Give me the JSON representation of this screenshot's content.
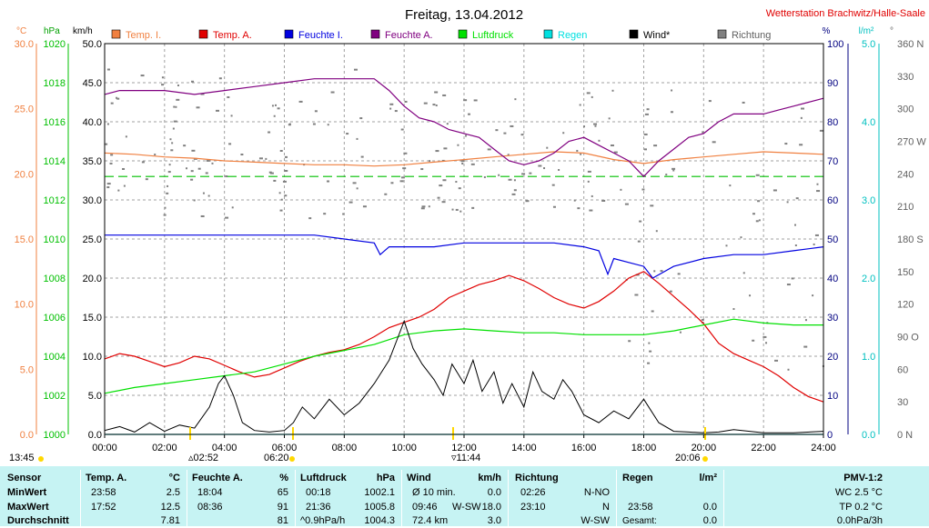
{
  "title": "Freitag, 13.04.2012",
  "station": "Wetterstation Brachwitz/Halle-Saale",
  "units": {
    "temp": "°C",
    "pressure": "hPa",
    "wind": "km/h",
    "humidity": "%",
    "rain": "l/m²",
    "direction": "°"
  },
  "legend": [
    {
      "label": "Temp. I.",
      "color": "#f08040"
    },
    {
      "label": "Temp. A.",
      "color": "#e00000"
    },
    {
      "label": "Feuchte I.",
      "color": "#0000e0"
    },
    {
      "label": "Feuchte A.",
      "color": "#800080"
    },
    {
      "label": "Luftdruck",
      "color": "#00e000"
    },
    {
      "label": "Regen",
      "color": "#00e0e0"
    },
    {
      "label": "Wind*",
      "color": "#000000"
    },
    {
      "label": "Richtung",
      "color": "#808080"
    }
  ],
  "axes": {
    "temp": {
      "color": "#f08040",
      "ticks": [
        "30.0",
        "25.0",
        "20.0",
        "15.0",
        "10.0",
        "5.0",
        "0.0"
      ],
      "range": [
        0,
        30
      ]
    },
    "pressure": {
      "color": "#00a000",
      "ticks": [
        "1020",
        "1018",
        "1016",
        "1014",
        "1012",
        "1010",
        "1008",
        "1006",
        "1004",
        "1002",
        "1000"
      ],
      "range": [
        1000,
        1020
      ]
    },
    "wind": {
      "color": "#000000",
      "ticks": [
        "50.0",
        "45.0",
        "40.0",
        "35.0",
        "30.0",
        "25.0",
        "20.0",
        "15.0",
        "10.0",
        "5.0",
        "0.0"
      ],
      "range": [
        0,
        50
      ]
    },
    "humidity": {
      "color": "#000080",
      "ticks": [
        "100",
        "90",
        "80",
        "70",
        "60",
        "50",
        "40",
        "30",
        "20",
        "10",
        "0"
      ],
      "range": [
        0,
        100
      ]
    },
    "rain": {
      "color": "#00c0c0",
      "ticks": [
        "5.0",
        "4.0",
        "3.0",
        "2.0",
        "1.0",
        "0.0"
      ],
      "range": [
        0,
        5
      ]
    },
    "direction": {
      "color": "#606060",
      "ticks": [
        "360 N",
        "330",
        "300",
        "270 W",
        "240",
        "210",
        "180 S",
        "150",
        "120",
        "90 O",
        "60",
        "30",
        "0 N"
      ],
      "range": [
        0,
        360
      ]
    },
    "time": {
      "ticks": [
        "00:00",
        "02:00",
        "04:00",
        "06:00",
        "08:00",
        "10:00",
        "12:00",
        "14:00",
        "16:00",
        "18:00",
        "20:00",
        "22:00",
        "24:00"
      ],
      "range": [
        0,
        24
      ]
    }
  },
  "sun": {
    "labels": [
      "13:45",
      "▵02:52",
      "06:20",
      "▿11:44",
      "20:06"
    ]
  },
  "chart_data": {
    "type": "line",
    "title": "Freitag, 13.04.2012",
    "xlabel": "",
    "xlim": [
      0,
      24
    ],
    "grid": true,
    "reference_line": {
      "name": "Luftdruck",
      "value": 1013.2
    },
    "series": [
      {
        "name": "Temp. I.",
        "axis": "temp",
        "x": [
          0,
          1,
          2,
          3,
          4,
          5,
          6,
          7,
          8,
          9,
          10,
          11,
          12,
          13,
          14,
          15,
          16,
          17,
          18,
          19,
          20,
          21,
          22,
          23,
          24
        ],
        "values": [
          21.6,
          21.5,
          21.3,
          21.2,
          21.0,
          20.9,
          20.8,
          20.7,
          20.7,
          20.6,
          20.7,
          20.9,
          21.1,
          21.3,
          21.5,
          21.7,
          21.6,
          21.1,
          20.8,
          21.1,
          21.3,
          21.5,
          21.7,
          21.6,
          21.5
        ]
      },
      {
        "name": "Temp. A.",
        "axis": "temp",
        "x": [
          0,
          0.5,
          1,
          1.5,
          2,
          2.5,
          3,
          3.5,
          4,
          4.5,
          5,
          5.5,
          6,
          6.5,
          7,
          7.5,
          8,
          8.5,
          9,
          9.5,
          10,
          10.5,
          11,
          11.5,
          12,
          12.5,
          13,
          13.5,
          14,
          14.5,
          15,
          15.5,
          16,
          16.5,
          17,
          17.5,
          18,
          18.5,
          19,
          19.5,
          20,
          20.5,
          21,
          21.5,
          22,
          22.5,
          23,
          23.5,
          24
        ],
        "values": [
          5.8,
          6.2,
          6.0,
          5.6,
          5.2,
          5.5,
          6.0,
          5.8,
          5.3,
          4.8,
          4.4,
          4.6,
          5.1,
          5.6,
          6.0,
          6.3,
          6.5,
          6.9,
          7.5,
          8.2,
          8.6,
          9.0,
          9.6,
          10.5,
          11.0,
          11.5,
          11.8,
          12.2,
          11.8,
          11.2,
          10.5,
          10.0,
          9.7,
          10.2,
          11.0,
          12.0,
          12.5,
          11.6,
          10.6,
          9.6,
          8.5,
          7.0,
          6.2,
          5.7,
          5.2,
          4.5,
          3.6,
          2.9,
          2.5
        ]
      },
      {
        "name": "Feuchte I.",
        "axis": "humidity",
        "x": [
          0,
          1,
          2,
          3,
          4,
          5,
          6,
          7,
          8,
          9,
          9.2,
          9.5,
          10,
          11,
          12,
          13,
          14,
          15,
          16,
          16.5,
          16.8,
          17,
          17.5,
          18,
          18.3,
          19,
          20,
          21,
          22,
          23,
          24
        ],
        "values": [
          51,
          51,
          51,
          51,
          51,
          51,
          51,
          51,
          50,
          49,
          46,
          48,
          48,
          48,
          49,
          49,
          49,
          49,
          48,
          47,
          41,
          45,
          44,
          43,
          40,
          43,
          45,
          46,
          46,
          47,
          48
        ]
      },
      {
        "name": "Feuchte A.",
        "axis": "humidity",
        "x": [
          0,
          0.5,
          1,
          2,
          3,
          4,
          5,
          6,
          7,
          8,
          9,
          9.5,
          10,
          10.5,
          11,
          11.5,
          12,
          12.5,
          13,
          13.5,
          14,
          14.5,
          15,
          15.5,
          16,
          16.5,
          17,
          17.5,
          18,
          18.5,
          19,
          19.5,
          20,
          20.5,
          21,
          21.5,
          22,
          22.5,
          23,
          23.5,
          24
        ],
        "values": [
          87,
          88,
          88,
          88,
          87,
          88,
          89,
          90,
          91,
          91,
          91,
          88,
          84,
          81,
          80,
          78,
          77,
          76,
          73,
          70,
          69,
          70,
          72,
          75,
          76,
          74,
          72,
          70,
          66,
          70,
          73,
          76,
          77,
          80,
          82,
          82,
          82,
          83,
          84,
          85,
          86
        ]
      },
      {
        "name": "Luftdruck",
        "axis": "pressure",
        "x": [
          0,
          1,
          2,
          3,
          4,
          5,
          6,
          7,
          8,
          9,
          10,
          10.5,
          11,
          12,
          13,
          14,
          15,
          16,
          17,
          18,
          19,
          20,
          21,
          22,
          23,
          24
        ],
        "values": [
          1002.1,
          1002.4,
          1002.6,
          1002.8,
          1003.0,
          1003.2,
          1003.6,
          1004.0,
          1004.3,
          1004.6,
          1005.1,
          1005.2,
          1005.3,
          1005.4,
          1005.3,
          1005.2,
          1005.2,
          1005.1,
          1005.1,
          1005.1,
          1005.3,
          1005.6,
          1005.9,
          1005.7,
          1005.6,
          1005.6
        ]
      },
      {
        "name": "Wind*",
        "axis": "wind",
        "x": [
          0,
          0.5,
          1,
          1.5,
          2,
          2.5,
          3,
          3.5,
          3.8,
          4,
          4.3,
          4.6,
          5,
          5.5,
          6,
          6.3,
          6.6,
          7,
          7.5,
          8,
          8.5,
          9,
          9.5,
          9.8,
          10,
          10.3,
          10.6,
          11,
          11.3,
          11.6,
          12,
          12.3,
          12.6,
          13,
          13.3,
          13.6,
          14,
          14.3,
          14.6,
          15,
          15.3,
          15.6,
          16,
          16.5,
          17,
          17.5,
          18,
          18.5,
          19,
          19.5,
          20,
          20.5,
          21,
          22,
          23,
          24
        ],
        "values": [
          0.5,
          1.0,
          0.3,
          1.5,
          0.4,
          1.2,
          0.8,
          3.5,
          6.5,
          7.5,
          5.0,
          1.5,
          0.5,
          0.3,
          0.5,
          1.5,
          3.5,
          2.0,
          4.5,
          2.5,
          4.0,
          6.5,
          9.5,
          12.5,
          14.5,
          11.0,
          9.0,
          7.0,
          5.0,
          9.0,
          6.5,
          9.5,
          5.5,
          8.0,
          4.0,
          6.5,
          3.5,
          8.0,
          5.5,
          4.5,
          7.0,
          5.5,
          2.5,
          1.5,
          3.0,
          2.0,
          4.5,
          1.5,
          0.4,
          0.3,
          0.2,
          0.3,
          0.6,
          0.2,
          0.2,
          0.4
        ]
      },
      {
        "name": "Regen",
        "axis": "rain",
        "x": [
          0,
          24
        ],
        "values": [
          0,
          0
        ]
      }
    ]
  },
  "stats": {
    "labels": {
      "sensor": "Sensor",
      "min": "MinWert",
      "max": "MaxWert",
      "avg": "Durchschnitt"
    },
    "temp": {
      "hdr": "Temp. A.",
      "unit": "°C",
      "min_time": "23:58",
      "min_val": "2.5",
      "max_time": "17:52",
      "max_val": "12.5",
      "avg_val": "7.81"
    },
    "hum": {
      "hdr": "Feuchte A.",
      "unit": "%",
      "min_time": "18:04",
      "min_val": "65",
      "max_time": "08:36",
      "max_val": "91",
      "avg_val": "81"
    },
    "press": {
      "hdr": "Luftdruck",
      "unit": "hPa",
      "min_time": "00:18",
      "min_val": "1002.1",
      "max_time": "21:36",
      "max_val": "1005.8",
      "avg_note": "^0.9hPa/h",
      "avg_val": "1004.3"
    },
    "wind": {
      "hdr": "Wind",
      "unit": "km/h",
      "r1_left": "Ø 10 min.",
      "r1_val": "0.0",
      "r2_left": "09:46",
      "r2_mid": "W-SW",
      "r2_val": "18.0",
      "r3_left": "72.4 km",
      "r3_val": "3.0"
    },
    "dir": {
      "hdr": "Richtung",
      "r1_time": "02:26",
      "r1_val": "N-NO",
      "r2_time": "23:10",
      "r2_val": "N",
      "r3_val": "W-SW"
    },
    "rain": {
      "hdr": "Regen",
      "unit": "l/m²",
      "r2_time": "23:58",
      "r2_val": "0.0",
      "r3_left": "Gesamt:",
      "r3_val": "0.0",
      "r1_val": ""
    },
    "pmv": {
      "hdr": "PMV-1:2",
      "r1": "WC 2.5 °C",
      "r2": "TP 0.2 °C",
      "r3": "0.0hPa/3h"
    }
  }
}
